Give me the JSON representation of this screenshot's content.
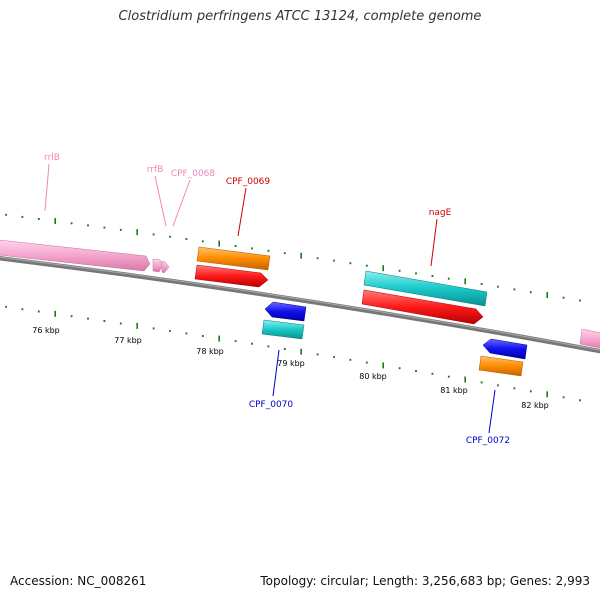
{
  "title": "Clostridium perfringens ATCC 13124, complete genome",
  "accession": "Accession: NC_008261",
  "summary": "Topology: circular; Length: 3,256,683 bp; Genes: 2,993",
  "colors": {
    "backbone": "#777777",
    "tick": "#1a7a1a",
    "rrna": "#f5a6cf",
    "cds_orange": "#ff8c00",
    "cds_red": "#ff1a1a",
    "cds_cyan": "#18c8c8",
    "cds_blue": "#1010ee",
    "label_red": "#cc0000",
    "label_blue": "#0000cc",
    "label_pink": "#ee88bb"
  },
  "scale_labels": [
    "76 kbp",
    "77 kbp",
    "78 kbp",
    "79 kbp",
    "80 kbp",
    "81 kbp",
    "82 kbp"
  ],
  "gene_labels": [
    "rrlB",
    "rrfB",
    "CPF_0068",
    "CPF_0069",
    "nagE",
    "CPF_0070",
    "CPF_0072"
  ]
}
